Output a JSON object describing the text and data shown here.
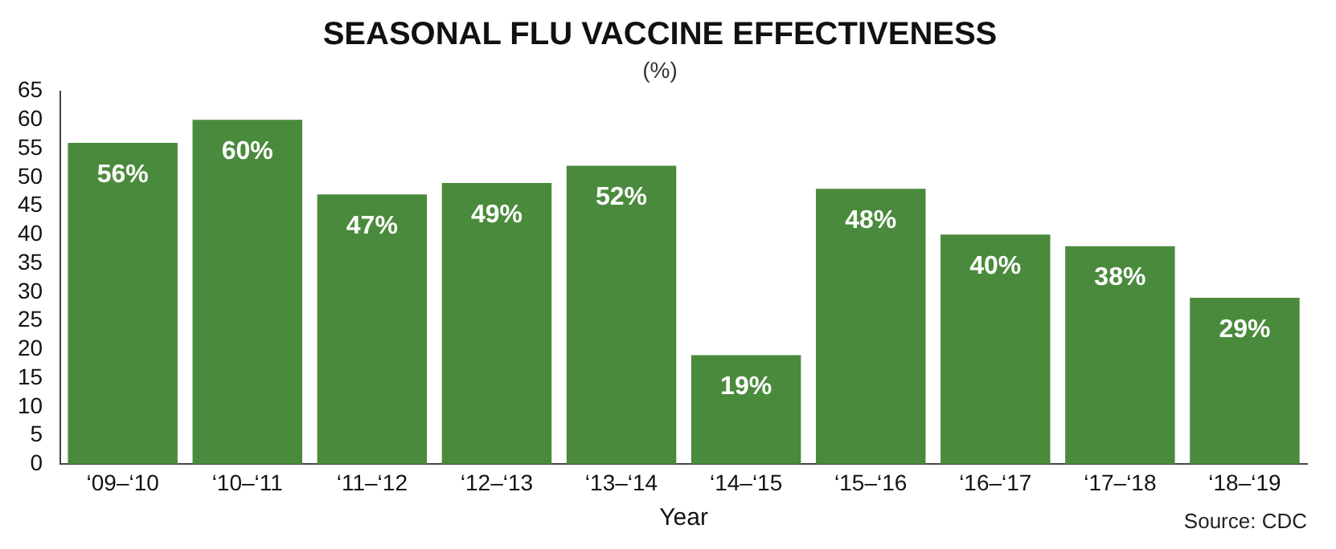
{
  "chart_data": {
    "type": "bar",
    "title": "SEASONAL FLU VACCINE EFFECTIVENESS",
    "subtitle": "(%)",
    "xlabel": "Year",
    "annotations": [
      "Source: CDC"
    ],
    "categories": [
      "‘09–‘10",
      "‘10–‘11",
      "‘11–‘12",
      "‘12–‘13",
      "‘13–‘14",
      "‘14–‘15",
      "‘15–‘16",
      "‘16–‘17",
      "‘17–‘18",
      "‘18–‘19"
    ],
    "values": [
      56,
      60,
      47,
      49,
      52,
      19,
      48,
      40,
      38,
      29
    ],
    "value_labels": [
      "56%",
      "60%",
      "47%",
      "49%",
      "52%",
      "19%",
      "48%",
      "40%",
      "38%",
      "29%"
    ],
    "color": "#4a8a3c",
    "ylim": [
      0,
      65
    ],
    "yticks": [
      0,
      5,
      10,
      15,
      20,
      25,
      30,
      35,
      40,
      45,
      50,
      55,
      60,
      65
    ],
    "grid": false,
    "legend": false
  }
}
